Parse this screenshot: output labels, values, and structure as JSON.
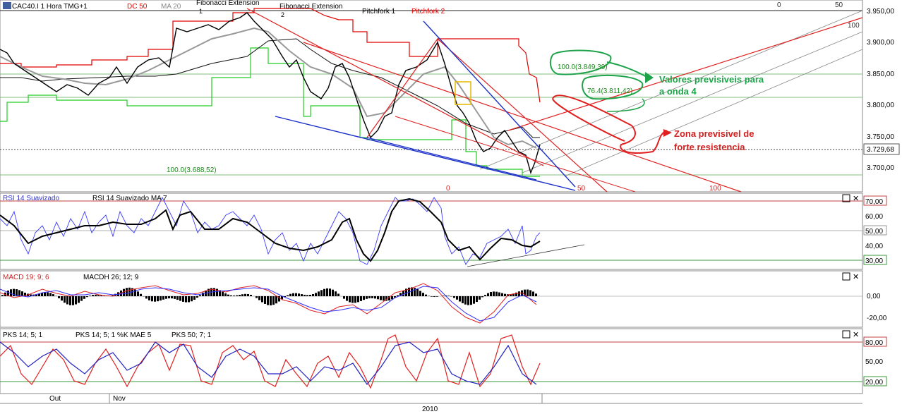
{
  "main": {
    "symbol_label": "CAC40.I 1 Hora TMG+1",
    "dc_label": "DC 50",
    "ma_label": "MA 20",
    "fib_ext_1": "Fibonacci Extension",
    "fib_ext_1_sub": "1",
    "fib_ext_2": "Fibonacci Extension",
    "fib_ext_2_sub": "2",
    "pitchfork_1": "Pitchfork 1",
    "pitchfork_2": "Pitchfork 2",
    "price_ticks": [
      "3.950,00",
      "3.900,00",
      "3.850,00",
      "3.800,00",
      "3.750,00",
      "3.700,00"
    ],
    "current_price": "3.729,68",
    "fib_100_low": "100.0(3.688,52)",
    "fib_100_high": "100.0(3.849,39)",
    "fib_76": "76.4(3.811,42)",
    "annotation_green": "Valores previsiveis para",
    "annotation_green_2": "a onda 4",
    "annotation_red": "Zona previsivel de",
    "annotation_red_2": "forte resistencia",
    "pf_labels": [
      "0",
      "50",
      "100"
    ],
    "pf_top_labels": [
      "0",
      "50",
      "100"
    ]
  },
  "rsi": {
    "label_1": "RSI 14 Suavizado",
    "label_2": "RSI 14 Suavizado MA 7",
    "ticks": [
      "70,00",
      "60,00",
      "50,00",
      "40,00",
      "30,00"
    ]
  },
  "macd": {
    "label_1": "MACD 19; 9; 6",
    "label_2": "MACDH 26; 12; 9",
    "ticks": [
      "0,00",
      "-20,00"
    ]
  },
  "stoch": {
    "label_1": "PKS 14; 5; 1",
    "label_2": "PKS 14; 5; 1 %K MAE 5",
    "label_3": "PKS 50; 7; 1",
    "ticks": [
      "80,00",
      "50,00",
      "20,00"
    ]
  },
  "xaxis": {
    "labels": [
      "Out",
      "Nov"
    ],
    "year": "2010"
  },
  "colors": {
    "price": "#000000",
    "donchian_upper": "#e00000",
    "donchian_lower": "#22cc22",
    "ma": "#999999",
    "pitchfork_red": "#e02020",
    "pitchfork_blue": "#1a2fc8",
    "annotation_green": "#1fa34a",
    "annotation_red": "#e02020",
    "rsi_line": "#3a3aff",
    "macd_red": "#e02020",
    "macd_blue": "#3030ff"
  },
  "chart_data": {
    "type": "line",
    "title": "CAC40.I 1 Hora TMG+1",
    "y_axis_range": [
      3670,
      3960
    ],
    "price_path": [
      [
        0,
        3890
      ],
      [
        20,
        3870
      ],
      [
        40,
        3855
      ],
      [
        60,
        3840
      ],
      [
        80,
        3830
      ],
      [
        100,
        3845
      ],
      [
        120,
        3830
      ],
      [
        140,
        3850
      ],
      [
        160,
        3860
      ],
      [
        180,
        3850
      ],
      [
        200,
        3870
      ],
      [
        220,
        3880
      ],
      [
        240,
        3890
      ],
      [
        260,
        3915
      ],
      [
        280,
        3925
      ],
      [
        300,
        3920
      ],
      [
        320,
        3935
      ],
      [
        340,
        3945
      ],
      [
        350,
        3950
      ],
      [
        360,
        3935
      ],
      [
        380,
        3915
      ],
      [
        400,
        3880
      ],
      [
        420,
        3860
      ],
      [
        440,
        3830
      ],
      [
        460,
        3815
      ],
      [
        480,
        3845
      ],
      [
        500,
        3810
      ],
      [
        520,
        3750
      ],
      [
        540,
        3770
      ],
      [
        560,
        3795
      ],
      [
        580,
        3850
      ],
      [
        600,
        3860
      ],
      [
        620,
        3905
      ],
      [
        630,
        3870
      ],
      [
        640,
        3830
      ],
      [
        650,
        3800
      ],
      [
        660,
        3780
      ],
      [
        670,
        3760
      ],
      [
        690,
        3730
      ],
      [
        710,
        3750
      ],
      [
        730,
        3745
      ],
      [
        745,
        3720
      ],
      [
        755,
        3690
      ],
      [
        765,
        3730
      ]
    ],
    "current_price": 3729.68
  }
}
